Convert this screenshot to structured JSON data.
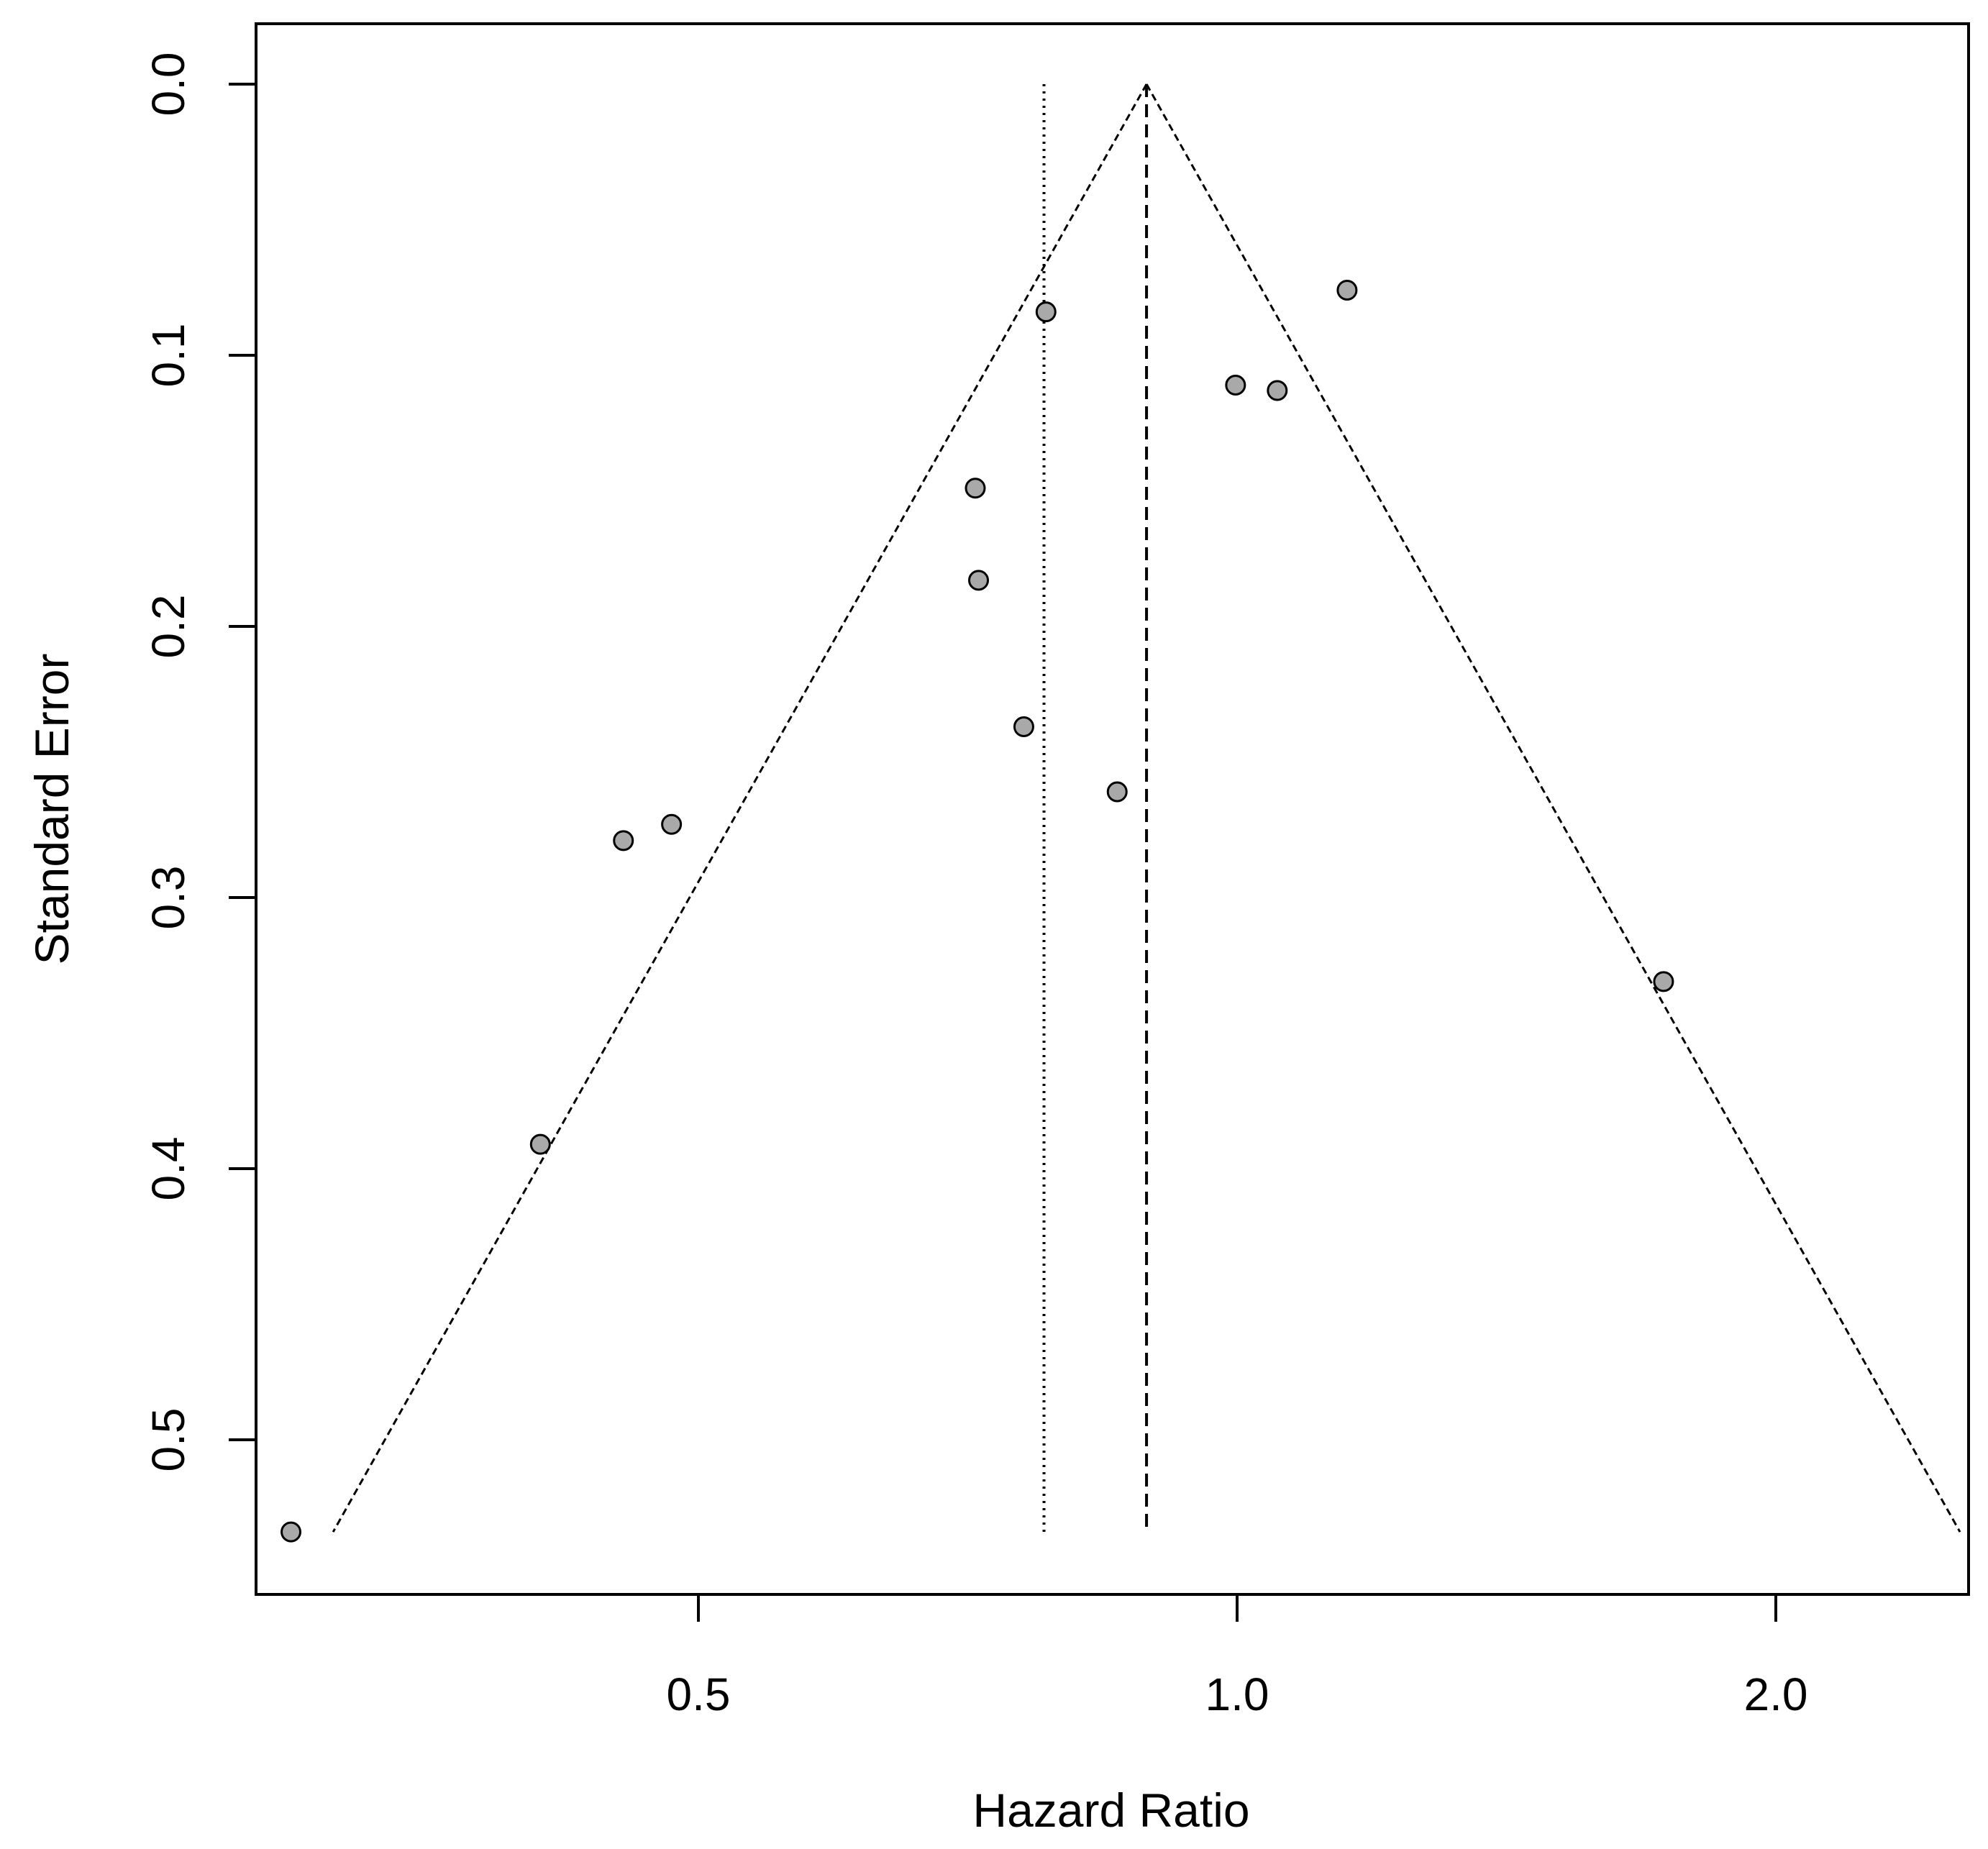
{
  "chart_data": {
    "type": "scatter",
    "title": "",
    "xlabel": "Hazard Ratio",
    "ylabel": "Standard Error",
    "x_scale": "log",
    "xlim": [
      0.283,
      2.563
    ],
    "ylim": [
      0.0,
      0.5
    ],
    "y_reversed": true,
    "x_ticks": [
      {
        "value": 0.5,
        "label": "0.5"
      },
      {
        "value": 1.0,
        "label": "1.0"
      },
      {
        "value": 2.0,
        "label": "2.0"
      }
    ],
    "y_ticks": [
      {
        "value": 0.0,
        "label": "0.0"
      },
      {
        "value": 0.1,
        "label": "0.1"
      },
      {
        "value": 0.2,
        "label": "0.2"
      },
      {
        "value": 0.3,
        "label": "0.3"
      },
      {
        "value": 0.4,
        "label": "0.4"
      },
      {
        "value": 0.5,
        "label": "0.5"
      }
    ],
    "grid": false,
    "legend": "none",
    "pooled_estimate_fixed": 0.89,
    "pooled_estimate_random": 0.78,
    "funnel_max_se": 0.534,
    "points": [
      {
        "x": 0.296,
        "y": 0.534
      },
      {
        "x": 0.408,
        "y": 0.391
      },
      {
        "x": 0.454,
        "y": 0.279
      },
      {
        "x": 0.483,
        "y": 0.273
      },
      {
        "x": 0.714,
        "y": 0.149
      },
      {
        "x": 0.717,
        "y": 0.183
      },
      {
        "x": 0.76,
        "y": 0.237
      },
      {
        "x": 0.782,
        "y": 0.084
      },
      {
        "x": 0.857,
        "y": 0.261
      },
      {
        "x": 0.998,
        "y": 0.111
      },
      {
        "x": 1.053,
        "y": 0.113
      },
      {
        "x": 1.152,
        "y": 0.076
      },
      {
        "x": 1.731,
        "y": 0.331
      }
    ],
    "colors": {
      "point_fill": "#a9a9a9",
      "point_stroke": "#000000",
      "line": "#000000",
      "background": "#ffffff"
    }
  }
}
